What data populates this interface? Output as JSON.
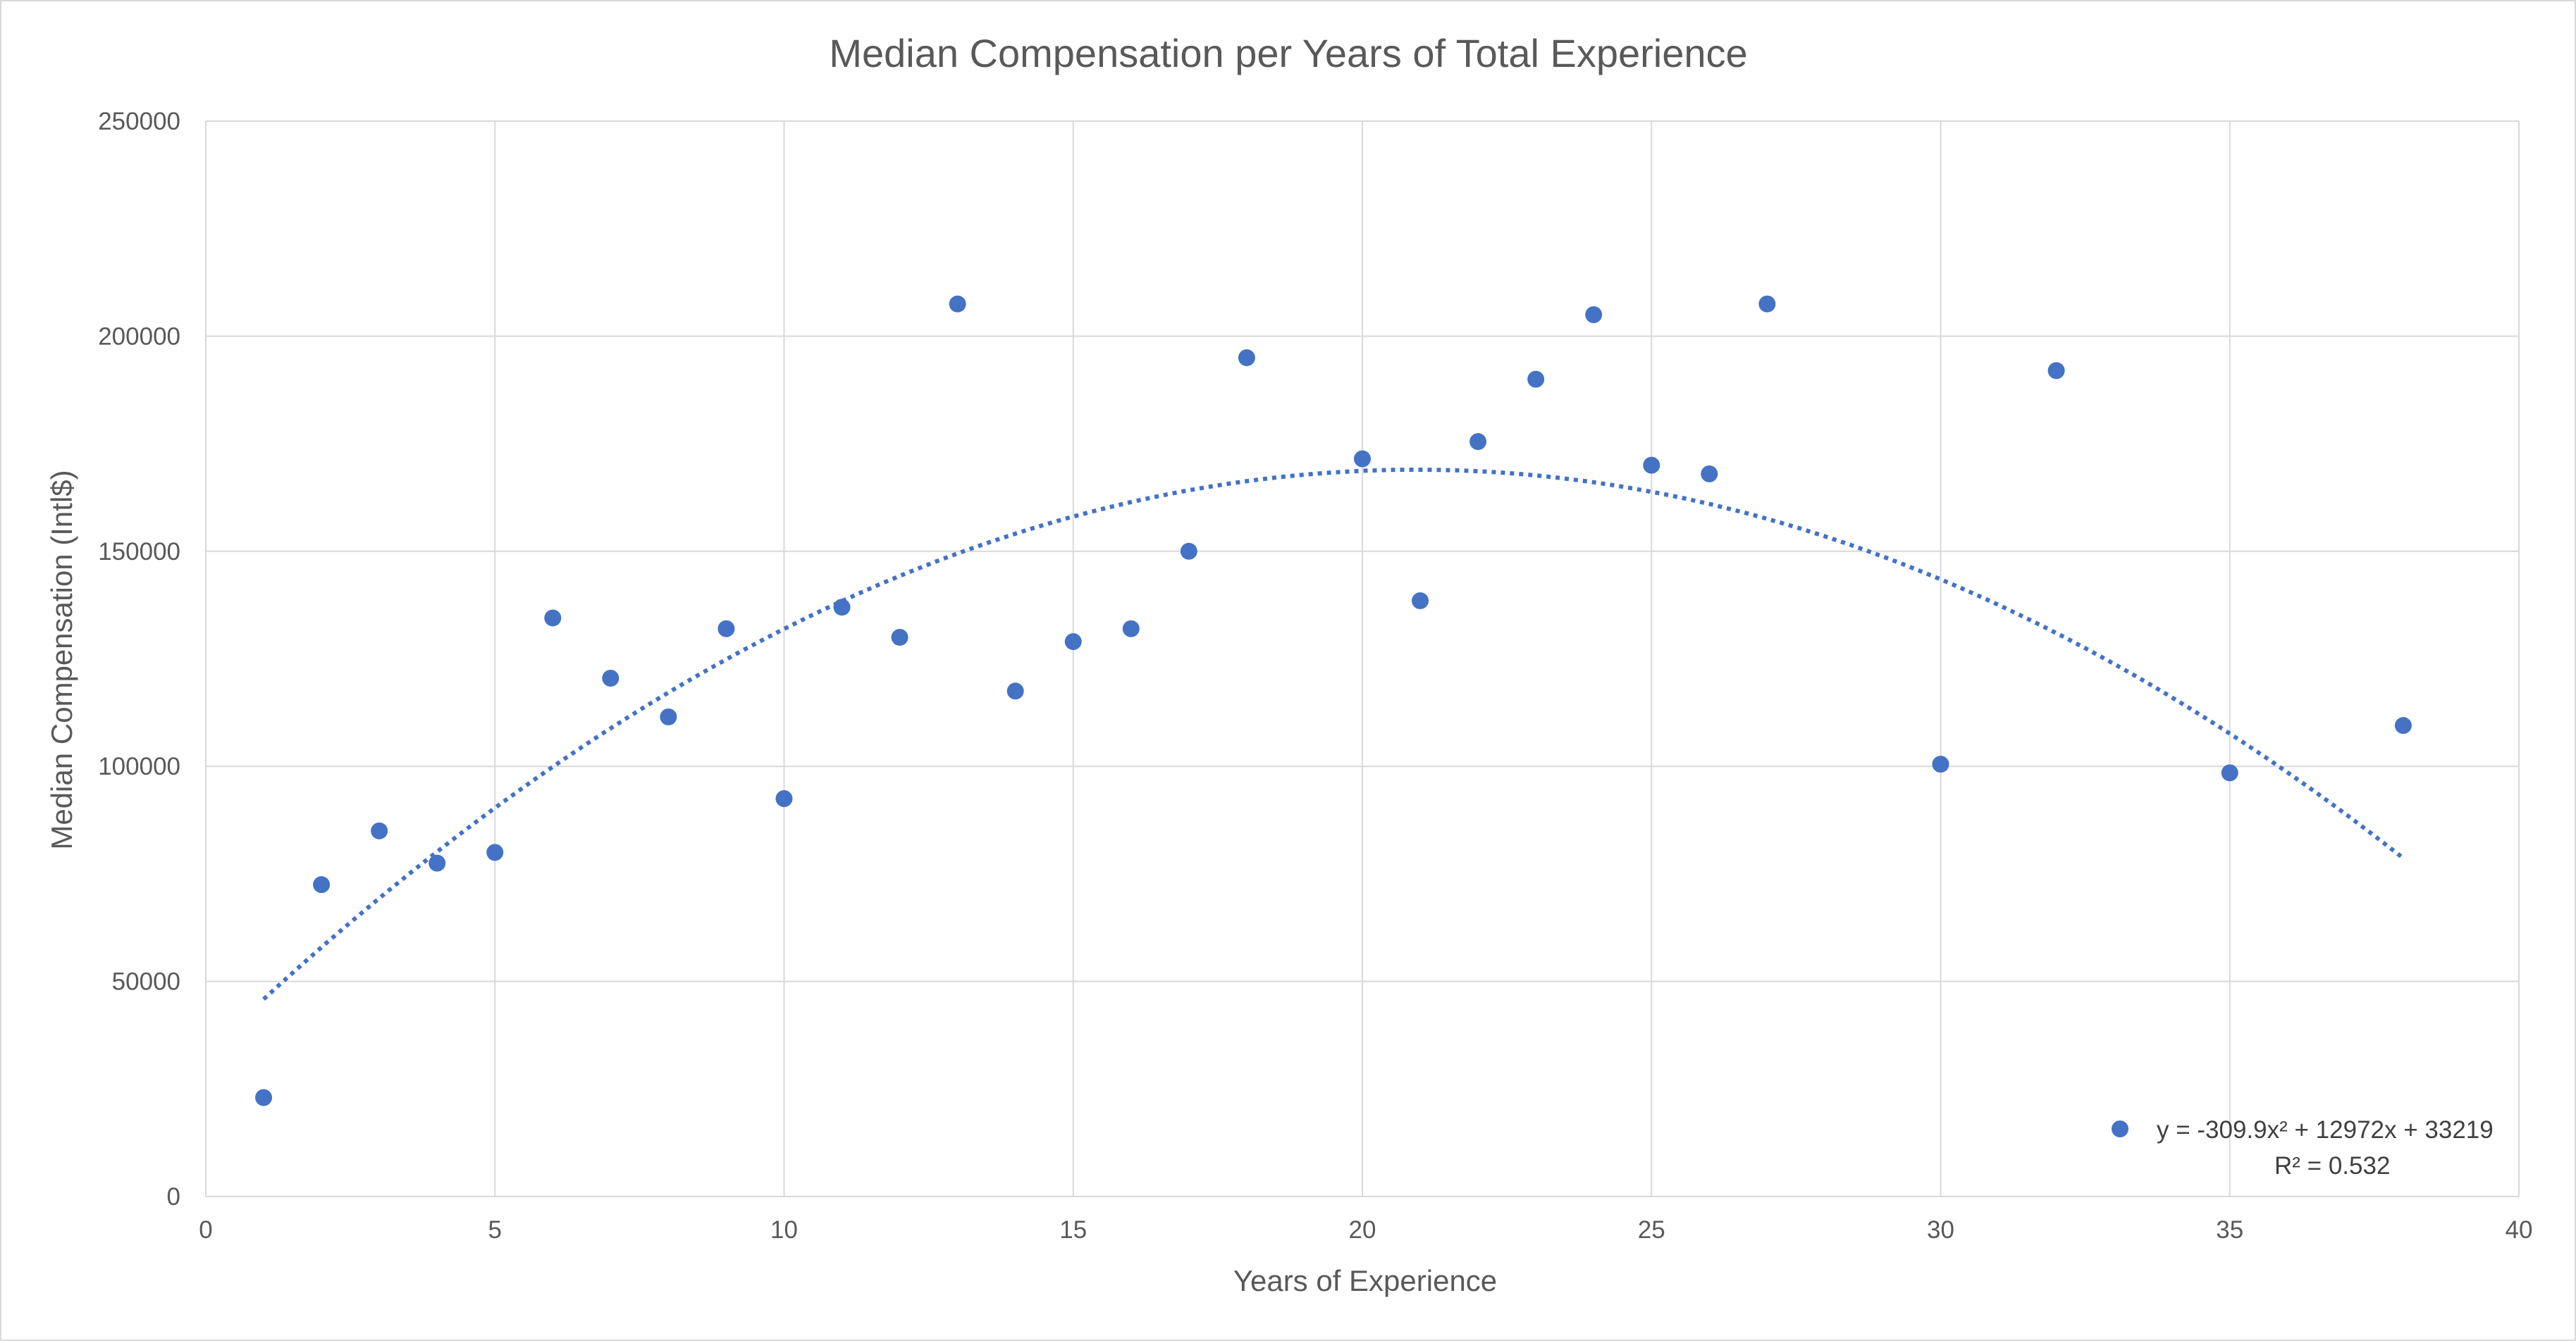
{
  "chart_data": {
    "type": "scatter",
    "title": "Median Compensation per Years of Total Experience",
    "xlabel": "Years of Experience",
    "ylabel": "Median Compensation (Intl$)",
    "xlim": [
      0,
      40
    ],
    "ylim": [
      0,
      250000
    ],
    "x_ticks": [
      0,
      5,
      10,
      15,
      20,
      25,
      30,
      35,
      40
    ],
    "y_ticks": [
      0,
      50000,
      100000,
      150000,
      200000,
      250000
    ],
    "x_tick_labels": [
      "0",
      "5",
      "10",
      "15",
      "20",
      "25",
      "30",
      "35",
      "40"
    ],
    "y_tick_labels": [
      "0",
      "50000",
      "100000",
      "150000",
      "200000",
      "250000"
    ],
    "grid": true,
    "marker_color": "#4472c4",
    "trend_color": "#4472c4",
    "series": [
      {
        "x": [
          1,
          2,
          3,
          4,
          5,
          6,
          7,
          8,
          9,
          10,
          11,
          12,
          13,
          14,
          15,
          16,
          17,
          18,
          20,
          21,
          22,
          23,
          24,
          25,
          26,
          27,
          30,
          32,
          35,
          38
        ],
        "y": [
          23000,
          72500,
          85000,
          77500,
          80000,
          134500,
          120500,
          111500,
          132000,
          92500,
          137000,
          130000,
          207500,
          117500,
          129000,
          132000,
          150000,
          195000,
          171500,
          138500,
          175500,
          190000,
          205000,
          170000,
          168000,
          207500,
          100500,
          192000,
          98500,
          109500
        ]
      }
    ],
    "trendline": {
      "type": "polynomial",
      "order": 2,
      "coefficients": [
        -309.9,
        12972,
        33219
      ],
      "x_range": [
        1,
        38
      ],
      "style": "dotted"
    },
    "legend": {
      "position": "bottom-right",
      "equation": "y = -309.9x² + 12972x + 33219",
      "r_squared": "R² = 0.532"
    }
  }
}
